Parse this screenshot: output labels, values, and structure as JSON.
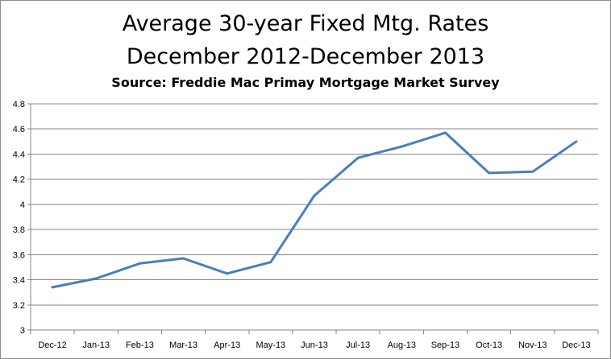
{
  "chart_data": {
    "type": "line",
    "title": "Average 30-year Fixed Mtg. Rates",
    "title_line2": "December 2012-December 2013",
    "subtitle": "Source: Freddie Mac Primay Mortgage Market Survey",
    "xlabel": "",
    "ylabel": "",
    "categories": [
      "Dec-12",
      "Jan-13",
      "Feb-13",
      "Mar-13",
      "Apr-13",
      "May-13",
      "Jun-13",
      "Jul-13",
      "Aug-13",
      "Sep-13",
      "Oct-13",
      "Nov-13",
      "Dec-13"
    ],
    "series": [
      {
        "values": [
          3.34,
          3.41,
          3.53,
          3.57,
          3.45,
          3.54,
          4.07,
          4.37,
          4.46,
          4.57,
          4.25,
          4.26,
          4.5
        ],
        "color": "#4a7ebb"
      }
    ],
    "ylim": [
      3,
      4.8
    ],
    "yticks": [
      3,
      3.2,
      3.4,
      3.6,
      3.8,
      4,
      4.2,
      4.4,
      4.6,
      4.8
    ],
    "grid": true,
    "legend": "none"
  }
}
